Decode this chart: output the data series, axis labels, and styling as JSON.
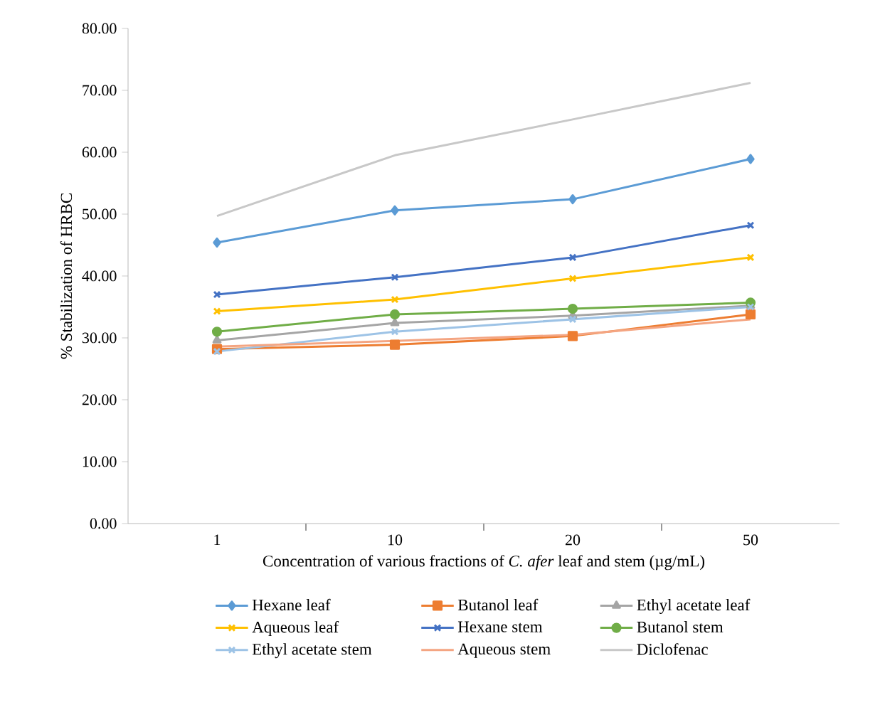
{
  "chart_data": {
    "type": "line",
    "xlabel": "Concentration of various fractions of *C. afer* leaf and stem (µg/mL)",
    "ylabel": "% Stabilization of HRBC",
    "categories": [
      "1",
      "10",
      "20",
      "50"
    ],
    "ylim": [
      0,
      80
    ],
    "yticks": [
      {
        "value": 0,
        "label": "0.00"
      },
      {
        "value": 10,
        "label": "10.00"
      },
      {
        "value": 20,
        "label": "20.00"
      },
      {
        "value": 30,
        "label": "30.00"
      },
      {
        "value": 40,
        "label": "40.00"
      },
      {
        "value": 50,
        "label": "50.00"
      },
      {
        "value": 60,
        "label": "60.00"
      },
      {
        "value": 70,
        "label": "70.00"
      },
      {
        "value": 80,
        "label": "80.00"
      }
    ],
    "grid": false,
    "legend": "bottom",
    "series": [
      {
        "name": "Hexane leaf",
        "color": "#5b9bd5",
        "marker": "diamond",
        "values": [
          45.4,
          50.6,
          52.4,
          58.9
        ]
      },
      {
        "name": "Butanol leaf",
        "color": "#ed7d31",
        "marker": "square",
        "values": [
          28.2,
          28.9,
          30.3,
          33.8
        ]
      },
      {
        "name": "Ethyl acetate leaf",
        "color": "#a5a5a5",
        "marker": "triangle",
        "values": [
          29.6,
          32.4,
          33.6,
          35.2
        ]
      },
      {
        "name": "Aqueous leaf",
        "color": "#ffc000",
        "marker": "cross",
        "values": [
          34.3,
          36.2,
          39.6,
          43.0
        ]
      },
      {
        "name": "Hexane stem",
        "color": "#4472c4",
        "marker": "cross",
        "values": [
          37.0,
          39.8,
          43.0,
          48.2
        ]
      },
      {
        "name": "Butanol stem",
        "color": "#70ad47",
        "marker": "circle",
        "values": [
          31.0,
          33.8,
          34.7,
          35.7
        ]
      },
      {
        "name": "Ethyl acetate stem",
        "color": "#9dc3e6",
        "marker": "cross",
        "values": [
          27.8,
          31.0,
          33.0,
          35.0
        ]
      },
      {
        "name": "Aqueous stem",
        "color": "#f4a582",
        "marker": "none",
        "values": [
          28.6,
          29.5,
          30.5,
          33.0
        ]
      },
      {
        "name": "Diclofenac",
        "color": "#c8c8c8",
        "marker": "none",
        "values": [
          49.7,
          59.5,
          65.3,
          71.2
        ]
      }
    ]
  }
}
